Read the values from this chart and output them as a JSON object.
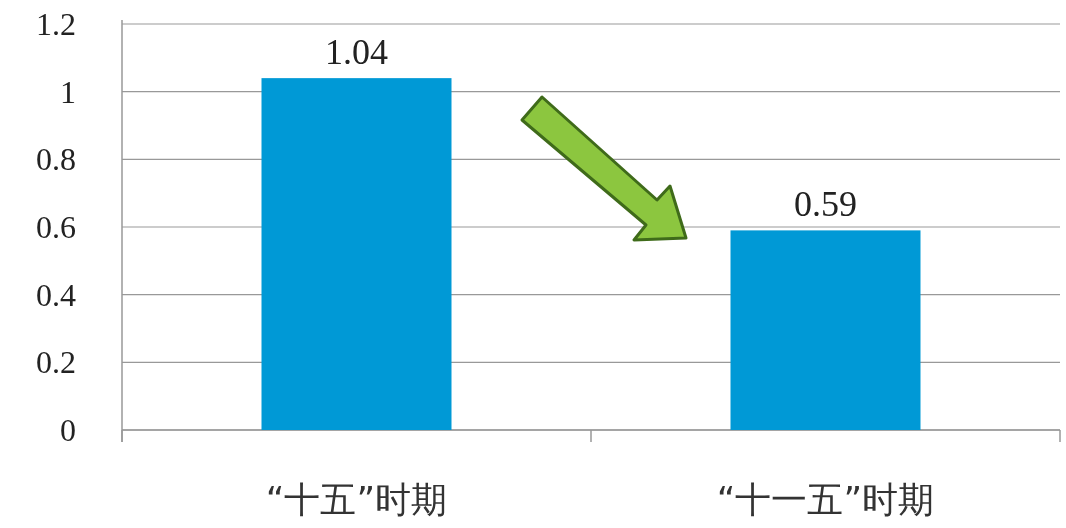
{
  "chart_data": {
    "type": "bar",
    "categories": [
      "“十五”时期",
      "“十一五”时期"
    ],
    "values": [
      1.04,
      0.59
    ],
    "color": "#0099d6",
    "ylim": [
      0,
      1.2
    ],
    "yticks": [
      0,
      0.2,
      0.4,
      0.6,
      0.8,
      1,
      1.2
    ],
    "grid": "y",
    "data_labels": true
  }
}
